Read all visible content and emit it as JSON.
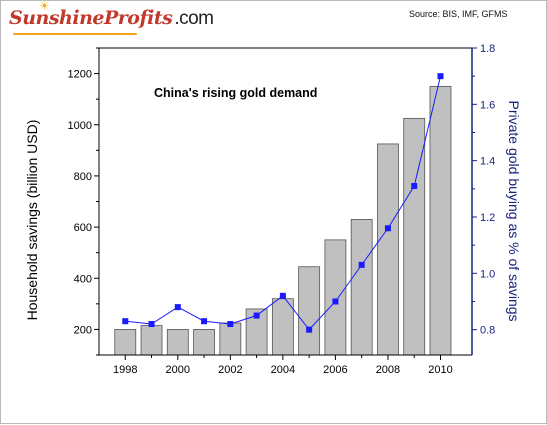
{
  "header": {
    "logo_text": "SunshineProfits",
    "logo_suffix": ".com",
    "source": "Source: BIS, IMF, GFMS"
  },
  "colors": {
    "bar_fill": "#c0c0c0",
    "bar_stroke": "#555555",
    "line": "#1a1aff",
    "right_axis": "#1a237e"
  },
  "chart_data": {
    "type": "bar+line",
    "title": "China's rising gold demand",
    "xlabel": "",
    "ylabel": "Household savings (billion USD)",
    "y2label": "Private gold buying as % of savings",
    "x": [
      1998,
      1999,
      2000,
      2001,
      2002,
      2003,
      2004,
      2005,
      2006,
      2007,
      2008,
      2009,
      2010
    ],
    "x_ticks": [
      "1998",
      "2000",
      "2002",
      "2004",
      "2006",
      "2008",
      "2010"
    ],
    "x_tick_values": [
      1998,
      2000,
      2002,
      2004,
      2006,
      2008,
      2010
    ],
    "xlim": [
      1997,
      2011.2
    ],
    "ylim": [
      100,
      1300
    ],
    "y_ticks": [
      "200",
      "400",
      "600",
      "800",
      "1000",
      "1200"
    ],
    "y_tick_values": [
      200,
      400,
      600,
      800,
      1000,
      1200
    ],
    "y2lim": [
      0.71,
      1.8
    ],
    "y2_ticks": [
      "0.8",
      "1.0",
      "1.2",
      "1.4",
      "1.6",
      "1.8"
    ],
    "y2_tick_values": [
      0.8,
      1.0,
      1.2,
      1.4,
      1.6,
      1.8
    ],
    "series": [
      {
        "kind": "bar",
        "axis": "left",
        "values": [
          200,
          215,
          200,
          200,
          225,
          280,
          320,
          445,
          550,
          630,
          925,
          1025,
          1150
        ]
      },
      {
        "kind": "line",
        "axis": "right",
        "values": [
          0.83,
          0.82,
          0.88,
          0.83,
          0.82,
          0.85,
          0.92,
          0.8,
          0.9,
          1.03,
          1.16,
          1.31,
          1.7
        ]
      }
    ]
  }
}
